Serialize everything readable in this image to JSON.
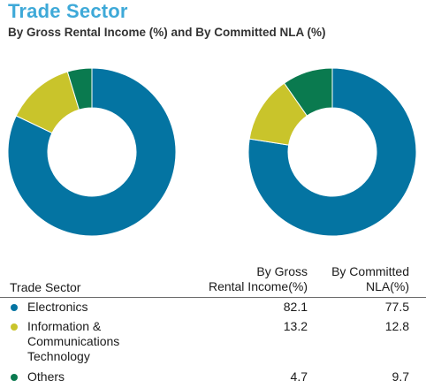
{
  "title": "Trade Sector",
  "subtitle": "By Gross Rental Income (%) and By Committed NLA (%)",
  "colors": {
    "title": "#3ea9d8",
    "electronics": "#0474a2",
    "ict": "#c9c42b",
    "others": "#0a7a4f"
  },
  "table": {
    "header_label": "Trade Sector",
    "col1_line1": "By Gross",
    "col1_line2": "Rental Income(%)",
    "col2_line1": "By Committed",
    "col2_line2": "NLA(%)",
    "rows": [
      {
        "label": "Electronics",
        "gri": "82.1",
        "nla": "77.5"
      },
      {
        "label": "Information & Communications Technology",
        "gri": "13.2",
        "nla": "12.8"
      },
      {
        "label": "Others",
        "gri": "4.7",
        "nla": "9.7"
      }
    ]
  },
  "chart_data": [
    {
      "type": "pie",
      "categories": [
        "Electronics",
        "Information & Communications Technology",
        "Others"
      ],
      "values": [
        82.1,
        13.2,
        4.7
      ],
      "colors": [
        "#0474a2",
        "#c9c42b",
        "#0a7a4f"
      ],
      "donut": true
    },
    {
      "type": "pie",
      "categories": [
        "Electronics",
        "Information & Communications Technology",
        "Others"
      ],
      "values": [
        77.5,
        12.8,
        9.7
      ],
      "colors": [
        "#0474a2",
        "#c9c42b",
        "#0a7a4f"
      ],
      "donut": true
    }
  ]
}
